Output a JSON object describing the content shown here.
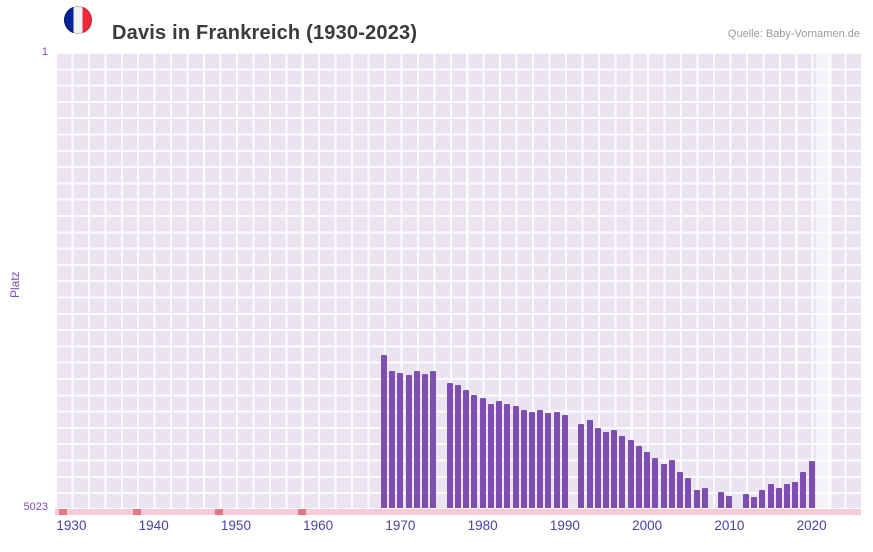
{
  "header": {
    "title": "Davis in Frankreich (1930-2023)",
    "source": "Quelle: Baby-Vornamen.de"
  },
  "chart_data": {
    "type": "bar",
    "title": "Davis in Frankreich (1930-2023)",
    "xlabel": "",
    "ylabel": "Platz",
    "y_axis": {
      "top_label": "1",
      "bottom_label": "5023",
      "min": 1,
      "max": 5023,
      "inverted": true
    },
    "x_axis": {
      "range": [
        1928,
        2026
      ],
      "tick_labels": [
        "1930",
        "1940",
        "1950",
        "1960",
        "1970",
        "1980",
        "1990",
        "2000",
        "2010",
        "2020"
      ]
    },
    "grid": true,
    "legend": false,
    "highlight_years": [
      2021,
      2022
    ],
    "series": [
      {
        "name": "Platz",
        "points": [
          [
            1968,
            3340
          ],
          [
            1969,
            3515
          ],
          [
            1970,
            3535
          ],
          [
            1971,
            3555
          ],
          [
            1972,
            3515
          ],
          [
            1973,
            3545
          ],
          [
            1974,
            3515
          ],
          [
            1975,
            null
          ],
          [
            1976,
            3645
          ],
          [
            1977,
            3665
          ],
          [
            1978,
            3720
          ],
          [
            1979,
            3775
          ],
          [
            1980,
            3810
          ],
          [
            1981,
            3875
          ],
          [
            1982,
            3845
          ],
          [
            1983,
            3875
          ],
          [
            1984,
            3900
          ],
          [
            1985,
            3940
          ],
          [
            1986,
            3965
          ],
          [
            1987,
            3940
          ],
          [
            1988,
            3975
          ],
          [
            1989,
            3965
          ],
          [
            1990,
            3995
          ],
          [
            1991,
            null
          ],
          [
            1992,
            4095
          ],
          [
            1993,
            4050
          ],
          [
            1994,
            4140
          ],
          [
            1995,
            4185
          ],
          [
            1996,
            4160
          ],
          [
            1997,
            4230
          ],
          [
            1998,
            4270
          ],
          [
            1999,
            4340
          ],
          [
            2000,
            4405
          ],
          [
            2001,
            4470
          ],
          [
            2002,
            4535
          ],
          [
            2003,
            4490
          ],
          [
            2004,
            4625
          ],
          [
            2005,
            4690
          ],
          [
            2006,
            4820
          ],
          [
            2007,
            4800
          ],
          [
            2008,
            null
          ],
          [
            2009,
            4845
          ],
          [
            2010,
            4890
          ],
          [
            2011,
            null
          ],
          [
            2012,
            4865
          ],
          [
            2013,
            4900
          ],
          [
            2014,
            4820
          ],
          [
            2015,
            4755
          ],
          [
            2016,
            4800
          ],
          [
            2017,
            4755
          ],
          [
            2018,
            4735
          ],
          [
            2019,
            4625
          ],
          [
            2020,
            4510
          ],
          [
            2021,
            null
          ],
          [
            2022,
            null
          ],
          [
            2023,
            null
          ]
        ]
      }
    ],
    "no_data_strip": {
      "marker_years": [
        1929,
        1938,
        1948,
        1958
      ]
    }
  },
  "colors": {
    "bar": "#7d4fb0",
    "plot_background": "#eae4f1",
    "grid_line": "#ffffff",
    "highlight_band": "rgba(255,255,255,0.5)",
    "no_data_strip": "#f6cad6",
    "no_data_marker": "#e57683",
    "x_label": "#4643a0",
    "y_label": "#7d4fb0",
    "title": "#3a3a3a",
    "source": "#999999",
    "flag_blue": "#002395",
    "flag_white": "#f2f2f2",
    "flag_red": "#ed2939"
  }
}
